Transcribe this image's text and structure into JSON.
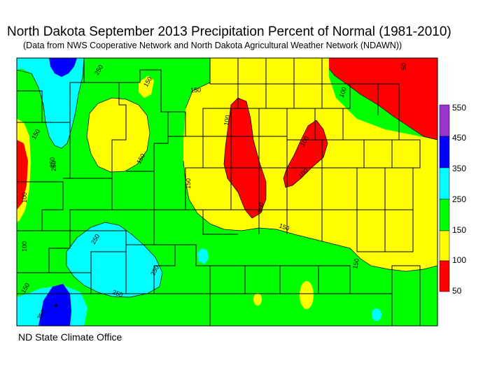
{
  "title": "North Dakota September 2013 Precipitation Percent of Normal (1981-2010)",
  "subtitle": "(Data from NWS Cooperative Network and North Dakota Agricultural Weather Network (NDAWN))",
  "credit": "ND State Climate Office",
  "legend": {
    "ticks": [
      "550",
      "450",
      "350",
      "250",
      "150",
      "100",
      "50"
    ],
    "bins": [
      {
        "from": "450",
        "to": "550",
        "color": "#9933cc"
      },
      {
        "from": "350",
        "to": "450",
        "color": "#0000ff"
      },
      {
        "from": "250",
        "to": "350",
        "color": "#00ffff"
      },
      {
        "from": "150",
        "to": "250",
        "color": "#00ff00"
      },
      {
        "from": "100",
        "to": "150",
        "color": "#ffff00"
      },
      {
        "from": "50",
        "to": "100",
        "color": "#ff0000"
      }
    ]
  },
  "contour_labels": [
    "250",
    "150",
    "50",
    "100",
    "150",
    "150",
    "100",
    "100",
    "100",
    "150",
    "250",
    "100",
    "150",
    "150",
    "150",
    "100",
    "250",
    "250",
    "250",
    "150",
    "150",
    "250",
    "250"
  ],
  "colors": {
    "green": "#00ff00",
    "yellow": "#ffff00",
    "red": "#ff0000",
    "cyan": "#00ffff",
    "blue": "#0000ff",
    "purple": "#9933cc"
  }
}
